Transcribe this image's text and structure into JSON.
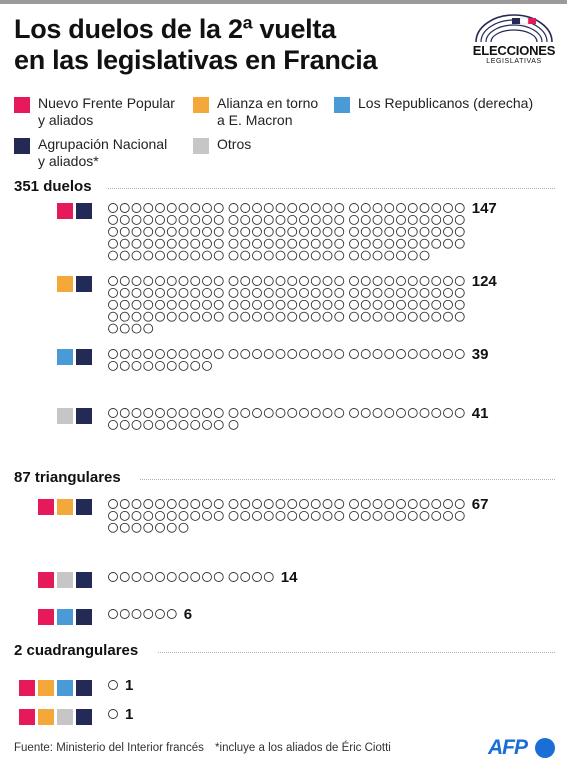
{
  "title": {
    "line1": "Los duelos de la 2ª vuelta",
    "line2": "en las legislativas en Francia"
  },
  "logo": {
    "word": "ELECCIONES",
    "sub": "LEGISLATIVAS"
  },
  "colors": {
    "nfp": "#e6195a",
    "macron": "#f4a83a",
    "lr": "#4a9ad8",
    "rn": "#232a56",
    "otros": "#c6c6c6"
  },
  "legend": [
    {
      "key": "nfp",
      "label": "Nuevo Frente Popular\ny aliados"
    },
    {
      "key": "macron",
      "label": "Alianza en torno\na E. Macron"
    },
    {
      "key": "lr",
      "label": "Los Republicanos (derecha)"
    },
    {
      "key": "rn",
      "label": "Agrupación Nacional\ny aliados*"
    },
    {
      "key": "otros",
      "label": "Otros"
    }
  ],
  "chart_data": {
    "type": "unit",
    "unit": "circle",
    "sections": [
      {
        "title": "351 duelos",
        "groups": [
          {
            "parties": [
              "nfp",
              "rn"
            ],
            "value": 147
          },
          {
            "parties": [
              "macron",
              "rn"
            ],
            "value": 124
          },
          {
            "parties": [
              "lr",
              "rn"
            ],
            "value": 39
          },
          {
            "parties": [
              "otros",
              "rn"
            ],
            "value": 41
          }
        ]
      },
      {
        "title": "87 triangulares",
        "groups": [
          {
            "parties": [
              "nfp",
              "macron",
              "rn"
            ],
            "value": 67
          },
          {
            "parties": [
              "nfp",
              "otros",
              "rn"
            ],
            "value": 14
          },
          {
            "parties": [
              "nfp",
              "lr",
              "rn"
            ],
            "value": 6
          }
        ]
      },
      {
        "title": "2 cuadrangulares",
        "groups": [
          {
            "parties": [
              "nfp",
              "macron",
              "lr",
              "rn"
            ],
            "value": 1
          },
          {
            "parties": [
              "nfp",
              "macron",
              "otros",
              "rn"
            ],
            "value": 1
          }
        ]
      }
    ]
  },
  "footer": {
    "source": "Fuente: Ministerio del Interior francés",
    "note": "*incluye a los aliados de Éric Ciotti"
  },
  "afp": "AFP"
}
